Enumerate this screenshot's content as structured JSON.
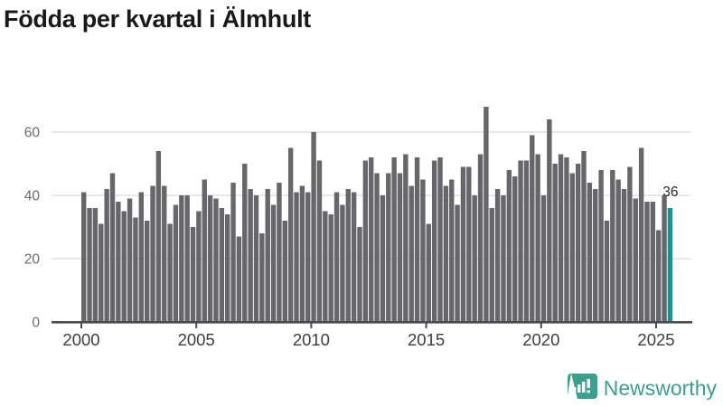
{
  "title": "Födda per kvartal i Älmhult",
  "chart_data": {
    "type": "bar",
    "title": "Födda per kvartal i Älmhult",
    "frequency": "quarterly",
    "start_period": "2000 Q1",
    "end_period": "2025 Q3",
    "values": [
      41,
      36,
      36,
      31,
      42,
      47,
      38,
      35,
      39,
      33,
      41,
      32,
      43,
      54,
      43,
      31,
      37,
      40,
      40,
      30,
      35,
      45,
      40,
      39,
      36,
      34,
      44,
      27,
      50,
      42,
      40,
      28,
      42,
      37,
      44,
      32,
      55,
      41,
      43,
      41,
      60,
      51,
      35,
      34,
      41,
      37,
      42,
      41,
      30,
      51,
      52,
      47,
      40,
      47,
      52,
      47,
      53,
      43,
      52,
      45,
      31,
      51,
      52,
      43,
      45,
      37,
      49,
      49,
      40,
      53,
      68,
      36,
      42,
      40,
      48,
      46,
      51,
      51,
      59,
      53,
      40,
      64,
      50,
      53,
      52,
      47,
      50,
      54,
      44,
      42,
      48,
      32,
      48,
      45,
      42,
      49,
      39,
      55,
      38,
      38,
      29,
      40,
      36
    ],
    "highlight": {
      "period": "2025 Q3",
      "value": 36,
      "label": "36"
    },
    "y_ticks": [
      0,
      20,
      40,
      60
    ],
    "x_ticks": [
      2000,
      2005,
      2010,
      2015,
      2020,
      2025
    ],
    "ylim": [
      0,
      73
    ],
    "grid": true,
    "legend": "none",
    "colors": {
      "bar": "#67676b",
      "highlight": "#0b989b",
      "grid": "#e8e8ea",
      "axis": "#4a4a4f",
      "y_label": "#696970",
      "x_label": "#3d3d42",
      "value_label": "#28282c"
    }
  },
  "logo": {
    "text": "Newsworthy",
    "icon": "newsworthy-logo-icon",
    "color": "#3aa18f"
  }
}
